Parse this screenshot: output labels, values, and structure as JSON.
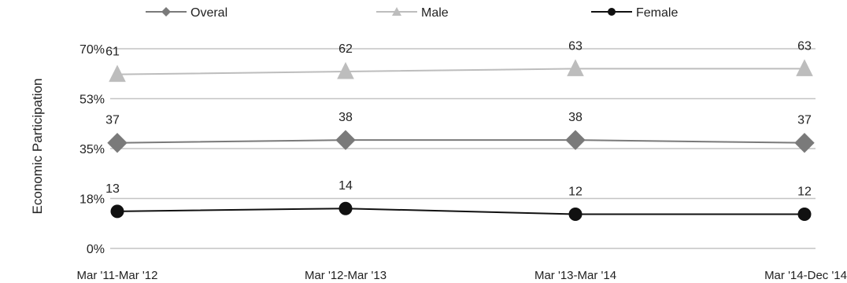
{
  "chart_data": {
    "type": "line",
    "categories": [
      "Mar '11-Mar '12",
      "Mar '12-Mar '13",
      "Mar '13-Mar '14",
      "Mar '14-Dec '14"
    ],
    "yticks": [
      "0%",
      "18%",
      "35%",
      "53%",
      "70%"
    ],
    "ylim": [
      0,
      70
    ],
    "ylabel": "Economic Participation",
    "grid": true,
    "legend_position": "top",
    "series": [
      {
        "name": "Overal",
        "values": [
          37,
          38,
          38,
          37
        ],
        "color": "#7a7a7a",
        "marker": "diamond"
      },
      {
        "name": "Male",
        "values": [
          61,
          62,
          63,
          63
        ],
        "color": "#bdbdbd",
        "marker": "triangle"
      },
      {
        "name": "Female",
        "values": [
          13,
          14,
          12,
          12
        ],
        "color": "#111111",
        "marker": "circle"
      }
    ]
  }
}
